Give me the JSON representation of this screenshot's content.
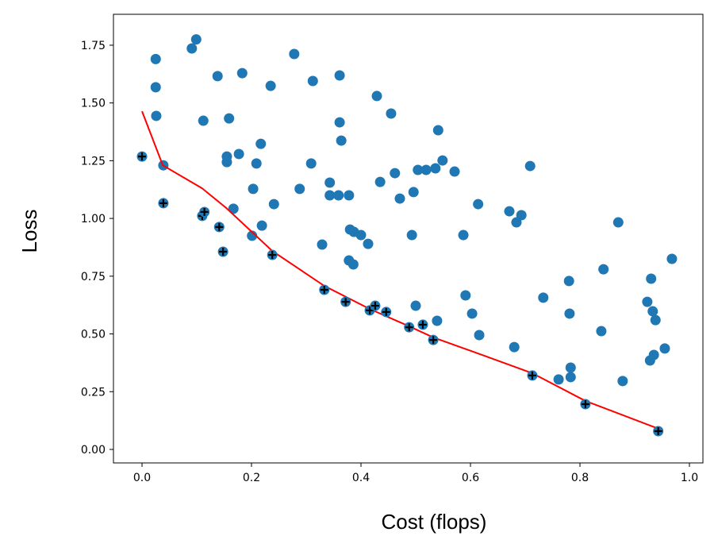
{
  "chart_data": {
    "type": "scatter",
    "title": "",
    "xlabel": "Cost (flops)",
    "ylabel": "Loss",
    "xlim": [
      -0.05,
      1.03
    ],
    "ylim": [
      -0.03,
      1.87
    ],
    "xticks": [
      "0.0",
      "0.2",
      "0.4",
      "0.6",
      "0.8",
      "1.0"
    ],
    "xtick_values": [
      0.0,
      0.2,
      0.4,
      0.6,
      0.8,
      1.0
    ],
    "yticks": [
      "0.00",
      "0.25",
      "0.50",
      "0.75",
      "1.00",
      "1.25",
      "1.50",
      "1.75"
    ],
    "ytick_values": [
      0.0,
      0.25,
      0.5,
      0.75,
      1.0,
      1.25,
      1.5,
      1.75
    ],
    "grid": false,
    "colors": {
      "points": "#1f77b4",
      "frontier_line": "#ff0000",
      "pareto_marker": "#000000"
    },
    "series": [
      {
        "name": "points",
        "x": [
          0.025,
          0.025,
          0.026,
          0.039,
          0.091,
          0.099,
          0.138,
          0.112,
          0.155,
          0.155,
          0.159,
          0.167,
          0.177,
          0.183,
          0.201,
          0.203,
          0.209,
          0.217,
          0.219,
          0.235,
          0.241,
          0.278,
          0.288,
          0.309,
          0.312,
          0.329,
          0.343,
          0.343,
          0.359,
          0.361,
          0.361,
          0.364,
          0.378,
          0.378,
          0.38,
          0.386,
          0.387,
          0.4,
          0.413,
          0.429,
          0.435,
          0.455,
          0.462,
          0.471,
          0.493,
          0.496,
          0.5,
          0.504,
          0.519,
          0.536,
          0.539,
          0.541,
          0.549,
          0.571,
          0.587,
          0.591,
          0.603,
          0.614,
          0.616,
          0.671,
          0.68,
          0.684,
          0.693,
          0.709,
          0.733,
          0.761,
          0.78,
          0.781,
          0.783,
          0.783,
          0.839,
          0.843,
          0.87,
          0.878,
          0.923,
          0.928,
          0.93,
          0.933,
          0.935,
          0.938,
          0.955,
          0.968
        ],
        "y": [
          1.69,
          1.568,
          1.444,
          1.23,
          1.736,
          1.775,
          1.616,
          1.423,
          1.268,
          1.244,
          1.433,
          1.042,
          1.279,
          1.629,
          0.925,
          1.128,
          1.238,
          1.323,
          0.969,
          1.574,
          1.062,
          1.712,
          1.128,
          1.238,
          1.595,
          0.887,
          1.1,
          1.155,
          1.1,
          1.619,
          1.416,
          1.337,
          1.1,
          0.818,
          0.952,
          0.801,
          0.942,
          0.928,
          0.89,
          1.53,
          1.158,
          1.454,
          1.196,
          1.086,
          0.928,
          1.114,
          0.622,
          1.21,
          1.21,
          1.217,
          0.557,
          1.382,
          1.251,
          1.203,
          0.928,
          0.667,
          0.588,
          1.062,
          0.495,
          1.031,
          0.443,
          0.983,
          1.014,
          1.227,
          0.657,
          0.303,
          0.729,
          0.588,
          0.313,
          0.354,
          0.512,
          0.78,
          0.983,
          0.296,
          0.639,
          0.385,
          0.739,
          0.598,
          0.409,
          0.56,
          0.437,
          0.825
        ]
      },
      {
        "name": "pareto",
        "x": [
          0.0,
          0.039,
          0.11,
          0.114,
          0.141,
          0.148,
          0.238,
          0.333,
          0.372,
          0.416,
          0.426,
          0.446,
          0.488,
          0.513,
          0.532,
          0.713,
          0.81,
          0.943
        ],
        "y": [
          1.268,
          1.066,
          1.011,
          1.028,
          0.963,
          0.856,
          0.842,
          0.691,
          0.639,
          0.602,
          0.622,
          0.595,
          0.529,
          0.54,
          0.474,
          0.32,
          0.196,
          0.079
        ]
      },
      {
        "name": "frontier",
        "x": [
          0.0,
          0.038,
          0.11,
          0.154,
          0.238,
          0.333,
          0.416,
          0.488,
          0.532,
          0.62,
          0.713,
          0.81,
          0.943
        ],
        "y": [
          1.464,
          1.23,
          1.13,
          1.045,
          0.859,
          0.708,
          0.608,
          0.533,
          0.485,
          0.41,
          0.33,
          0.21,
          0.09
        ]
      }
    ]
  }
}
